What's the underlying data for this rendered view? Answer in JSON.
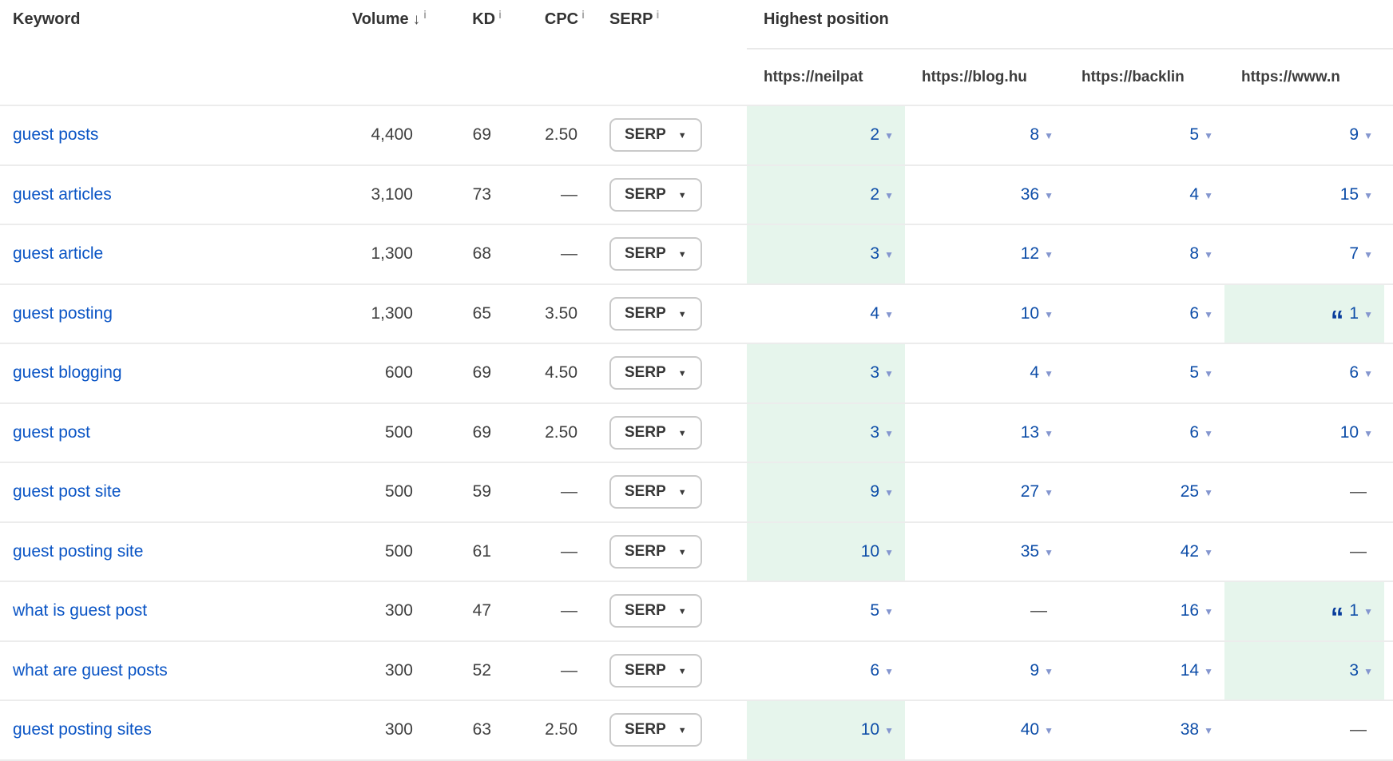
{
  "table": {
    "columns": {
      "keyword": "Keyword",
      "volume": "Volume",
      "kd": "KD",
      "cpc": "CPC",
      "serp": "SERP",
      "highest_position": "Highest position",
      "targets": [
        "https://neilpat",
        "https://blog.hu",
        "https://backlin",
        "https://www.n"
      ]
    },
    "serp_button_label": "SERP",
    "rows": [
      {
        "keyword": "guest posts",
        "volume": "4,400",
        "kd": "69",
        "cpc": "2.50",
        "positions": [
          {
            "value": "2",
            "highlight": true
          },
          {
            "value": "8"
          },
          {
            "value": "5"
          },
          {
            "value": "9"
          }
        ]
      },
      {
        "keyword": "guest articles",
        "volume": "3,100",
        "kd": "73",
        "cpc": "—",
        "positions": [
          {
            "value": "2",
            "highlight": true
          },
          {
            "value": "36"
          },
          {
            "value": "4"
          },
          {
            "value": "15"
          }
        ]
      },
      {
        "keyword": "guest article",
        "volume": "1,300",
        "kd": "68",
        "cpc": "—",
        "positions": [
          {
            "value": "3",
            "highlight": true
          },
          {
            "value": "12"
          },
          {
            "value": "8"
          },
          {
            "value": "7"
          }
        ]
      },
      {
        "keyword": "guest posting",
        "volume": "1,300",
        "kd": "65",
        "cpc": "3.50",
        "positions": [
          {
            "value": "4"
          },
          {
            "value": "10"
          },
          {
            "value": "6"
          },
          {
            "value": "1",
            "quote": true,
            "highlight": true
          }
        ]
      },
      {
        "keyword": "guest blogging",
        "volume": "600",
        "kd": "69",
        "cpc": "4.50",
        "positions": [
          {
            "value": "3",
            "highlight": true
          },
          {
            "value": "4"
          },
          {
            "value": "5"
          },
          {
            "value": "6"
          }
        ]
      },
      {
        "keyword": "guest post",
        "volume": "500",
        "kd": "69",
        "cpc": "2.50",
        "positions": [
          {
            "value": "3",
            "highlight": true
          },
          {
            "value": "13"
          },
          {
            "value": "6"
          },
          {
            "value": "10"
          }
        ]
      },
      {
        "keyword": "guest post site",
        "volume": "500",
        "kd": "59",
        "cpc": "—",
        "positions": [
          {
            "value": "9",
            "highlight": true
          },
          {
            "value": "27"
          },
          {
            "value": "25"
          },
          {
            "value": "—"
          }
        ]
      },
      {
        "keyword": "guest posting site",
        "volume": "500",
        "kd": "61",
        "cpc": "—",
        "positions": [
          {
            "value": "10",
            "highlight": true
          },
          {
            "value": "35"
          },
          {
            "value": "42"
          },
          {
            "value": "—"
          }
        ]
      },
      {
        "keyword": "what is guest post",
        "volume": "300",
        "kd": "47",
        "cpc": "—",
        "positions": [
          {
            "value": "5"
          },
          {
            "value": "—"
          },
          {
            "value": "16"
          },
          {
            "value": "1",
            "quote": true,
            "highlight": true
          }
        ]
      },
      {
        "keyword": "what are guest posts",
        "volume": "300",
        "kd": "52",
        "cpc": "—",
        "positions": [
          {
            "value": "6"
          },
          {
            "value": "9"
          },
          {
            "value": "14"
          },
          {
            "value": "3",
            "highlight": true
          }
        ]
      },
      {
        "keyword": "guest posting sites",
        "volume": "300",
        "kd": "63",
        "cpc": "2.50",
        "positions": [
          {
            "value": "10",
            "highlight": true
          },
          {
            "value": "40"
          },
          {
            "value": "38"
          },
          {
            "value": "—"
          }
        ]
      }
    ]
  },
  "icons": {
    "sort_desc": "↓",
    "info": "i",
    "caret_down": "▼",
    "quote": "“",
    "dash": "—"
  },
  "colors": {
    "link_blue": "#0b55c5",
    "position_blue": "#0d4da8",
    "caret_blue": "#8496cf",
    "quote_navy": "#083c9c",
    "highlight_green": "#e6f5ec",
    "row_border": "#ececec",
    "header_text": "#333333"
  }
}
